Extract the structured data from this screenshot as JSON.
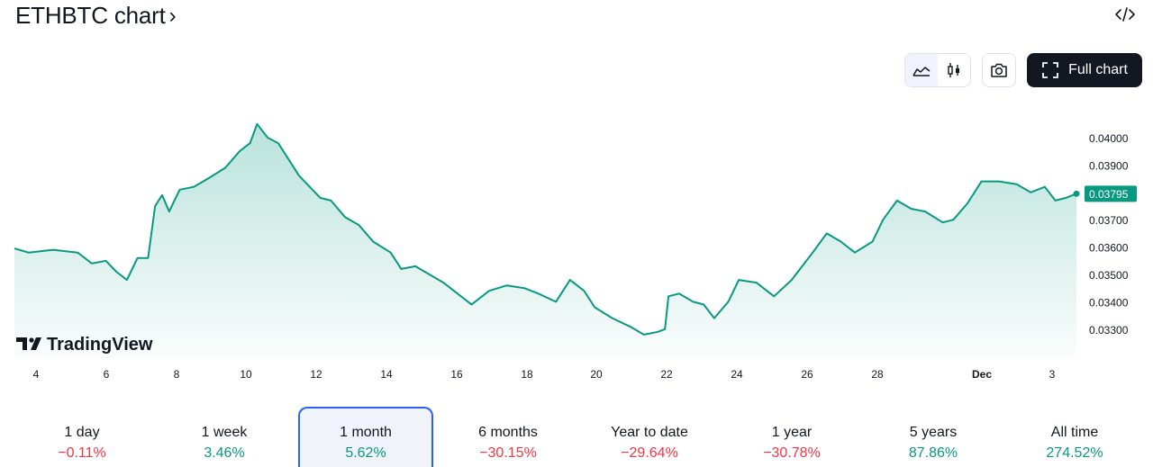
{
  "header": {
    "title": "ETHBTC chart",
    "title_chevron": "›"
  },
  "toolbar": {
    "full_chart_label": "Full chart"
  },
  "icons": {
    "embed": "code-icon",
    "area": "area-chart-icon",
    "candles": "candlestick-icon",
    "camera": "camera-icon",
    "fullscreen": "fullscreen-icon",
    "chevron": "chevron-right-icon"
  },
  "colors": {
    "line": "#089981",
    "negative": "#f23645",
    "positive": "#089981",
    "accent": "#2962ff",
    "dark": "#131722"
  },
  "logo": {
    "text": "TradingView"
  },
  "chart_data": {
    "type": "area",
    "x_ticks": [
      "4",
      "6",
      "8",
      "10",
      "12",
      "14",
      "16",
      "18",
      "20",
      "22",
      "24",
      "26",
      "28",
      "Dec",
      "3"
    ],
    "y_ticks": [
      "0.04000",
      "0.03900",
      "0.03800",
      "0.03700",
      "0.03600",
      "0.03500",
      "0.03400",
      "0.03300"
    ],
    "ylim": [
      0.0327,
      0.0408
    ],
    "last_value": "0.03795",
    "series": [
      {
        "x": [
          3.4,
          3.8,
          4.5,
          5.2,
          5.6,
          6.0,
          6.3,
          6.6,
          6.9,
          7.2,
          7.4,
          7.6,
          7.8,
          8.1,
          8.5,
          8.9,
          9.4,
          9.8,
          10.1,
          10.3,
          10.6,
          10.9,
          11.1,
          11.5,
          11.8,
          12.1,
          12.4,
          12.8,
          13.2,
          13.6,
          14.1,
          14.4,
          14.8,
          15.2,
          15.6,
          16.0,
          16.4,
          16.9,
          17.4,
          17.9,
          18.3,
          18.8,
          19.2,
          19.6,
          19.9,
          20.4,
          20.9,
          21.3,
          21.7,
          21.9,
          22.0,
          22.3,
          22.7,
          23.0,
          23.3,
          23.7,
          24.0,
          24.5,
          25.0,
          25.5,
          25.8,
          26.1,
          26.5,
          26.9,
          27.3,
          27.8,
          28.1,
          28.5,
          28.9,
          29.3,
          29.8,
          30.1,
          30.5,
          30.9,
          31.4,
          31.9,
          32.3,
          32.7,
          33.0,
          33.3,
          33.6
        ],
        "y": [
          0.03595,
          0.0358,
          0.0359,
          0.0358,
          0.0354,
          0.0355,
          0.0351,
          0.0348,
          0.0356,
          0.0356,
          0.0375,
          0.0379,
          0.0373,
          0.0381,
          0.0382,
          0.0385,
          0.0389,
          0.0395,
          0.0398,
          0.0405,
          0.04,
          0.0398,
          0.0394,
          0.0386,
          0.0382,
          0.0378,
          0.0377,
          0.0371,
          0.0368,
          0.0362,
          0.0358,
          0.0352,
          0.0353,
          0.035,
          0.0347,
          0.0343,
          0.0339,
          0.0344,
          0.0346,
          0.0345,
          0.0343,
          0.034,
          0.0348,
          0.0344,
          0.0338,
          0.0334,
          0.0331,
          0.0328,
          0.0329,
          0.033,
          0.0342,
          0.0343,
          0.034,
          0.0339,
          0.0334,
          0.034,
          0.0348,
          0.0347,
          0.0342,
          0.0348,
          0.0353,
          0.0358,
          0.0365,
          0.0362,
          0.0358,
          0.0362,
          0.037,
          0.0377,
          0.0374,
          0.0373,
          0.0369,
          0.037,
          0.0376,
          0.0384,
          0.0384,
          0.0383,
          0.038,
          0.0382,
          0.0377,
          0.0378,
          0.03795
        ]
      }
    ]
  },
  "periods": [
    {
      "label": "1 day",
      "value": "−0.11%",
      "sign": "neg"
    },
    {
      "label": "1 week",
      "value": "3.46%",
      "sign": "pos"
    },
    {
      "label": "1 month",
      "value": "5.62%",
      "sign": "pos",
      "active": true
    },
    {
      "label": "6 months",
      "value": "−30.15%",
      "sign": "neg"
    },
    {
      "label": "Year to date",
      "value": "−29.64%",
      "sign": "neg"
    },
    {
      "label": "1 year",
      "value": "−30.78%",
      "sign": "neg"
    },
    {
      "label": "5 years",
      "value": "87.86%",
      "sign": "pos"
    },
    {
      "label": "All time",
      "value": "274.52%",
      "sign": "pos"
    }
  ]
}
